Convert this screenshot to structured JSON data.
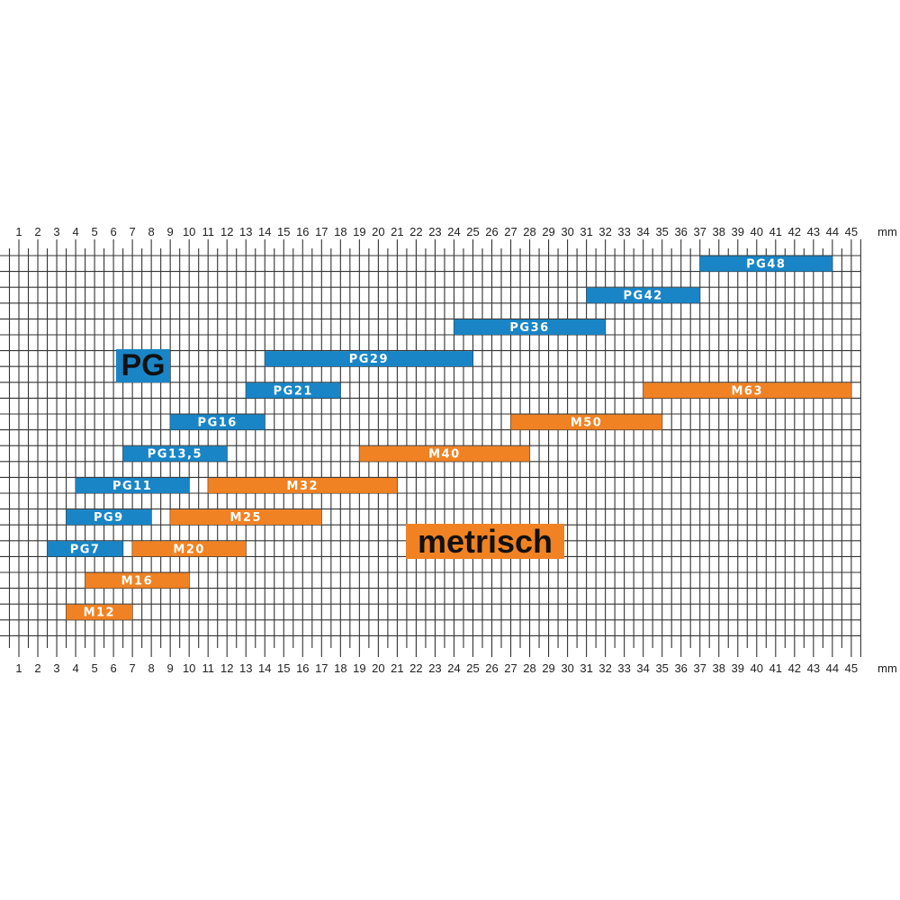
{
  "chart_data": {
    "type": "bar",
    "orientation": "horizontal-range",
    "unit": "mm",
    "xlim": [
      0.5,
      45.5
    ],
    "x_ticks": [
      1,
      2,
      3,
      4,
      5,
      6,
      7,
      8,
      9,
      10,
      11,
      12,
      13,
      14,
      15,
      16,
      17,
      18,
      19,
      20,
      21,
      22,
      23,
      24,
      25,
      26,
      27,
      28,
      29,
      30,
      31,
      32,
      33,
      34,
      35,
      36,
      37,
      38,
      39,
      40,
      41,
      42,
      43,
      44,
      45
    ],
    "grid": true,
    "colors": {
      "PG": "#1985c6",
      "metrisch": "#f08223"
    },
    "legend": [
      {
        "label": "PG",
        "group": "PG"
      },
      {
        "label": "metrisch",
        "group": "metrisch"
      }
    ],
    "series": [
      {
        "name": "PG48",
        "group": "PG",
        "min": 37,
        "max": 44
      },
      {
        "name": "PG42",
        "group": "PG",
        "min": 31,
        "max": 37
      },
      {
        "name": "PG36",
        "group": "PG",
        "min": 24,
        "max": 32
      },
      {
        "name": "PG29",
        "group": "PG",
        "min": 14,
        "max": 25
      },
      {
        "name": "PG21",
        "group": "PG",
        "min": 13,
        "max": 18
      },
      {
        "name": "PG16",
        "group": "PG",
        "min": 9,
        "max": 14
      },
      {
        "name": "PG13,5",
        "group": "PG",
        "min": 6.5,
        "max": 12
      },
      {
        "name": "PG11",
        "group": "PG",
        "min": 4,
        "max": 10
      },
      {
        "name": "PG9",
        "group": "PG",
        "min": 3.5,
        "max": 8
      },
      {
        "name": "PG7",
        "group": "PG",
        "min": 2.5,
        "max": 6.5
      },
      {
        "name": "M63",
        "group": "metrisch",
        "min": 34,
        "max": 45
      },
      {
        "name": "M50",
        "group": "metrisch",
        "min": 27,
        "max": 35
      },
      {
        "name": "M40",
        "group": "metrisch",
        "min": 19,
        "max": 28
      },
      {
        "name": "M32",
        "group": "metrisch",
        "min": 11,
        "max": 21
      },
      {
        "name": "M25",
        "group": "metrisch",
        "min": 9,
        "max": 17
      },
      {
        "name": "M20",
        "group": "metrisch",
        "min": 7,
        "max": 13
      },
      {
        "name": "M16",
        "group": "metrisch",
        "min": 4.5,
        "max": 10
      },
      {
        "name": "M12",
        "group": "metrisch",
        "min": 3.5,
        "max": 7
      }
    ]
  }
}
